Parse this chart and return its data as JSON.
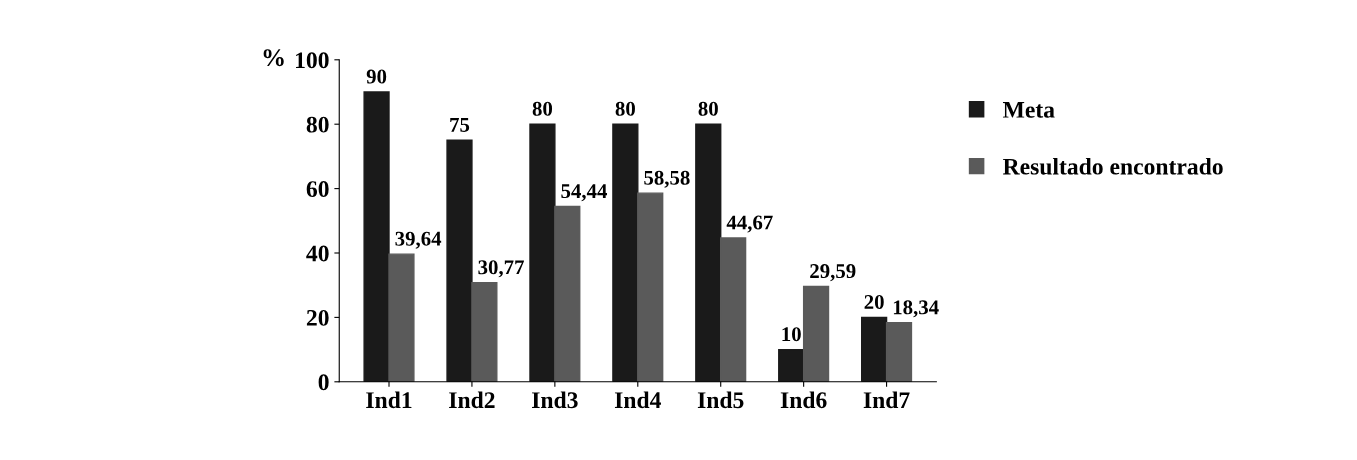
{
  "chart_data": {
    "type": "bar",
    "ylabel": "%",
    "categories": [
      "Ind1",
      "Ind2",
      "Ind3",
      "Ind4",
      "Ind5",
      "Ind6",
      "Ind7"
    ],
    "series": [
      {
        "name": "Meta",
        "color": "#1a1a1a",
        "values": [
          90,
          75,
          80,
          80,
          80,
          10,
          20
        ],
        "value_labels": [
          "90",
          "75",
          "80",
          "80",
          "80",
          "10",
          "20"
        ]
      },
      {
        "name": "Resultado encontrado",
        "color": "#5a5a5a",
        "values": [
          39.64,
          30.77,
          54.44,
          58.58,
          44.67,
          29.59,
          18.34
        ],
        "value_labels": [
          "39,64",
          "30,77",
          "54,44",
          "58,58",
          "44,67",
          "29,59",
          "18,34"
        ]
      }
    ],
    "ylim": [
      0,
      100
    ],
    "yticks": [
      0,
      20,
      40,
      60,
      80,
      100
    ],
    "grid": false,
    "legend": "right"
  }
}
